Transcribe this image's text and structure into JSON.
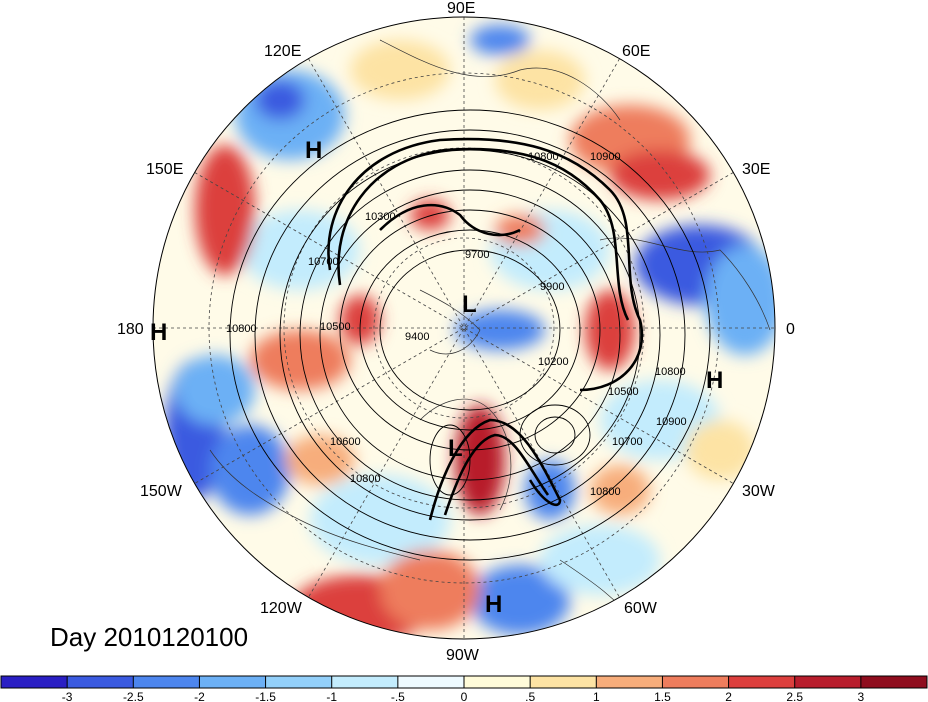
{
  "title": "Day 2010120100",
  "longitude_labels": {
    "e90": "90E",
    "e60": "60E",
    "e30": "30E",
    "zero": "0",
    "w30": "30W",
    "w60": "60W",
    "w90": "90W",
    "w120": "120W",
    "w150": "150W",
    "l180": "180",
    "e150": "150E",
    "e120": "120E"
  },
  "pressure_centers": {
    "h1": "H",
    "h2": "H",
    "h3": "H",
    "h4": "H",
    "l1": "L",
    "l2": "L"
  },
  "contour_labels": {
    "c1": "10800",
    "c2": "10900",
    "c3": "10300",
    "c4": "9700",
    "c5": "9900",
    "c6": "10700",
    "c7": "10800",
    "c8": "10500",
    "c9": "9400",
    "c10": "10200",
    "c11": "10600",
    "c12": "10800",
    "c13": "10500",
    "c14": "10700",
    "c15": "10900",
    "c16": "10800",
    "c17": "10800"
  },
  "colorbar": {
    "labels": [
      "-3",
      "-2.5",
      "-2",
      "-1.5",
      "-1",
      "-.5",
      "0",
      ".5",
      "1",
      "1.5",
      "2",
      "2.5",
      "3"
    ],
    "colors": [
      "#2a1fc4",
      "#3a5ae0",
      "#4d86ee",
      "#6cb0f5",
      "#93d0fa",
      "#c3ecfd",
      "#eefaff",
      "#fffbd9",
      "#fde3a4",
      "#f7ad7b",
      "#ee7d5d",
      "#dc3f3d",
      "#b81d2c",
      "#8f0d1e"
    ]
  },
  "map_colors": {
    "background": "#fffbe8",
    "blue_strong": "#3a5ae0",
    "blue_mid": "#6cb0f5",
    "blue_light": "#c3ecfd",
    "red_strong": "#dc3f3d",
    "red_mid": "#ee7d5d",
    "orange_light": "#fde3a4"
  }
}
